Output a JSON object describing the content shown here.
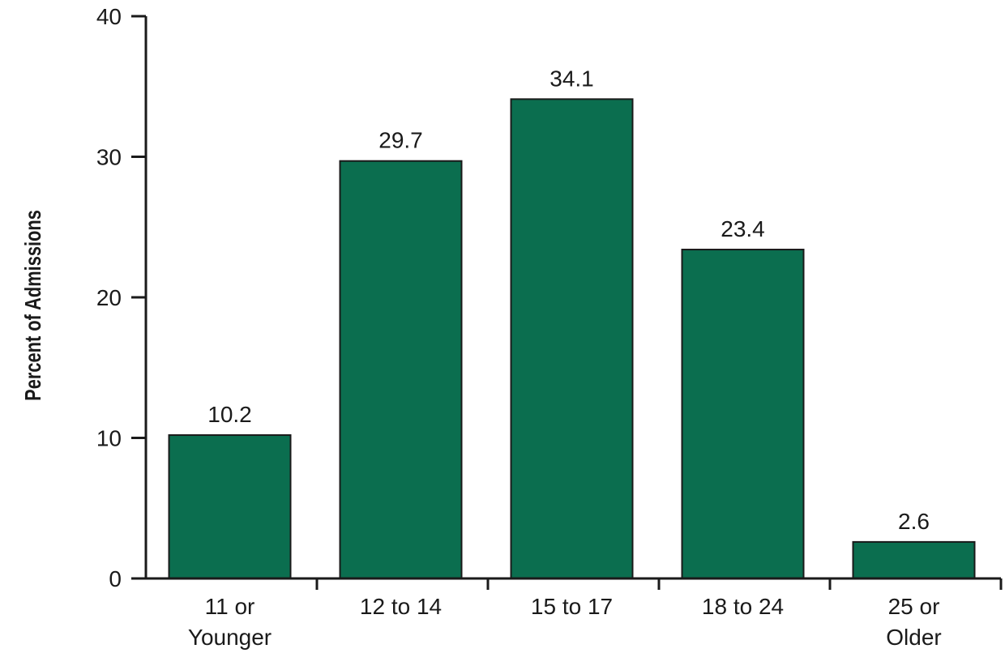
{
  "chart_data": {
    "type": "bar",
    "categories": [
      [
        "11 or",
        "Younger"
      ],
      [
        "12 to 14"
      ],
      [
        "15 to 17"
      ],
      [
        "18 to 24"
      ],
      [
        "25 or",
        "Older"
      ]
    ],
    "values": [
      10.2,
      29.7,
      34.1,
      23.4,
      2.6
    ],
    "value_labels": [
      "10.2",
      "29.7",
      "34.1",
      "23.4",
      "2.6"
    ],
    "xlabel": "",
    "ylabel": "Percent of Admissions",
    "ylim": [
      0,
      40
    ],
    "yticks": [
      0,
      10,
      20,
      30,
      40
    ],
    "grid": false,
    "bar_color": "#0b6e4f"
  }
}
